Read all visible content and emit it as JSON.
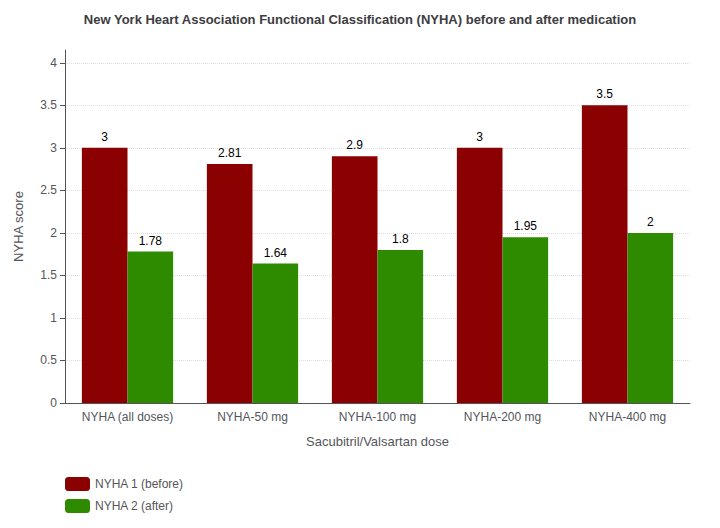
{
  "chart_data": {
    "type": "bar",
    "title": "New York Heart Association Functional Classification (NYHA) before and after medication",
    "xlabel": "Sacubitril/Valsartan dose",
    "ylabel": "NYHA score",
    "categories": [
      "NYHA (all doses)",
      "NYHA-50 mg",
      "NYHA-100 mg",
      "NYHA-200 mg",
      "NYHA-400 mg"
    ],
    "series": [
      {
        "name": "NYHA 1 (before)",
        "color": "#8B0000",
        "values": [
          3.0,
          2.81,
          2.9,
          3.0,
          3.5
        ]
      },
      {
        "name": "NYHA 2 (after)",
        "color": "#2E8B00",
        "values": [
          1.78,
          1.64,
          1.8,
          1.95,
          2.0
        ]
      }
    ],
    "ylim": [
      0,
      4.15
    ],
    "yticks": [
      0,
      0.5,
      1,
      1.5,
      2,
      2.5,
      3,
      3.5,
      4
    ],
    "grid": true,
    "legend": "lower left",
    "data_labels": true
  }
}
